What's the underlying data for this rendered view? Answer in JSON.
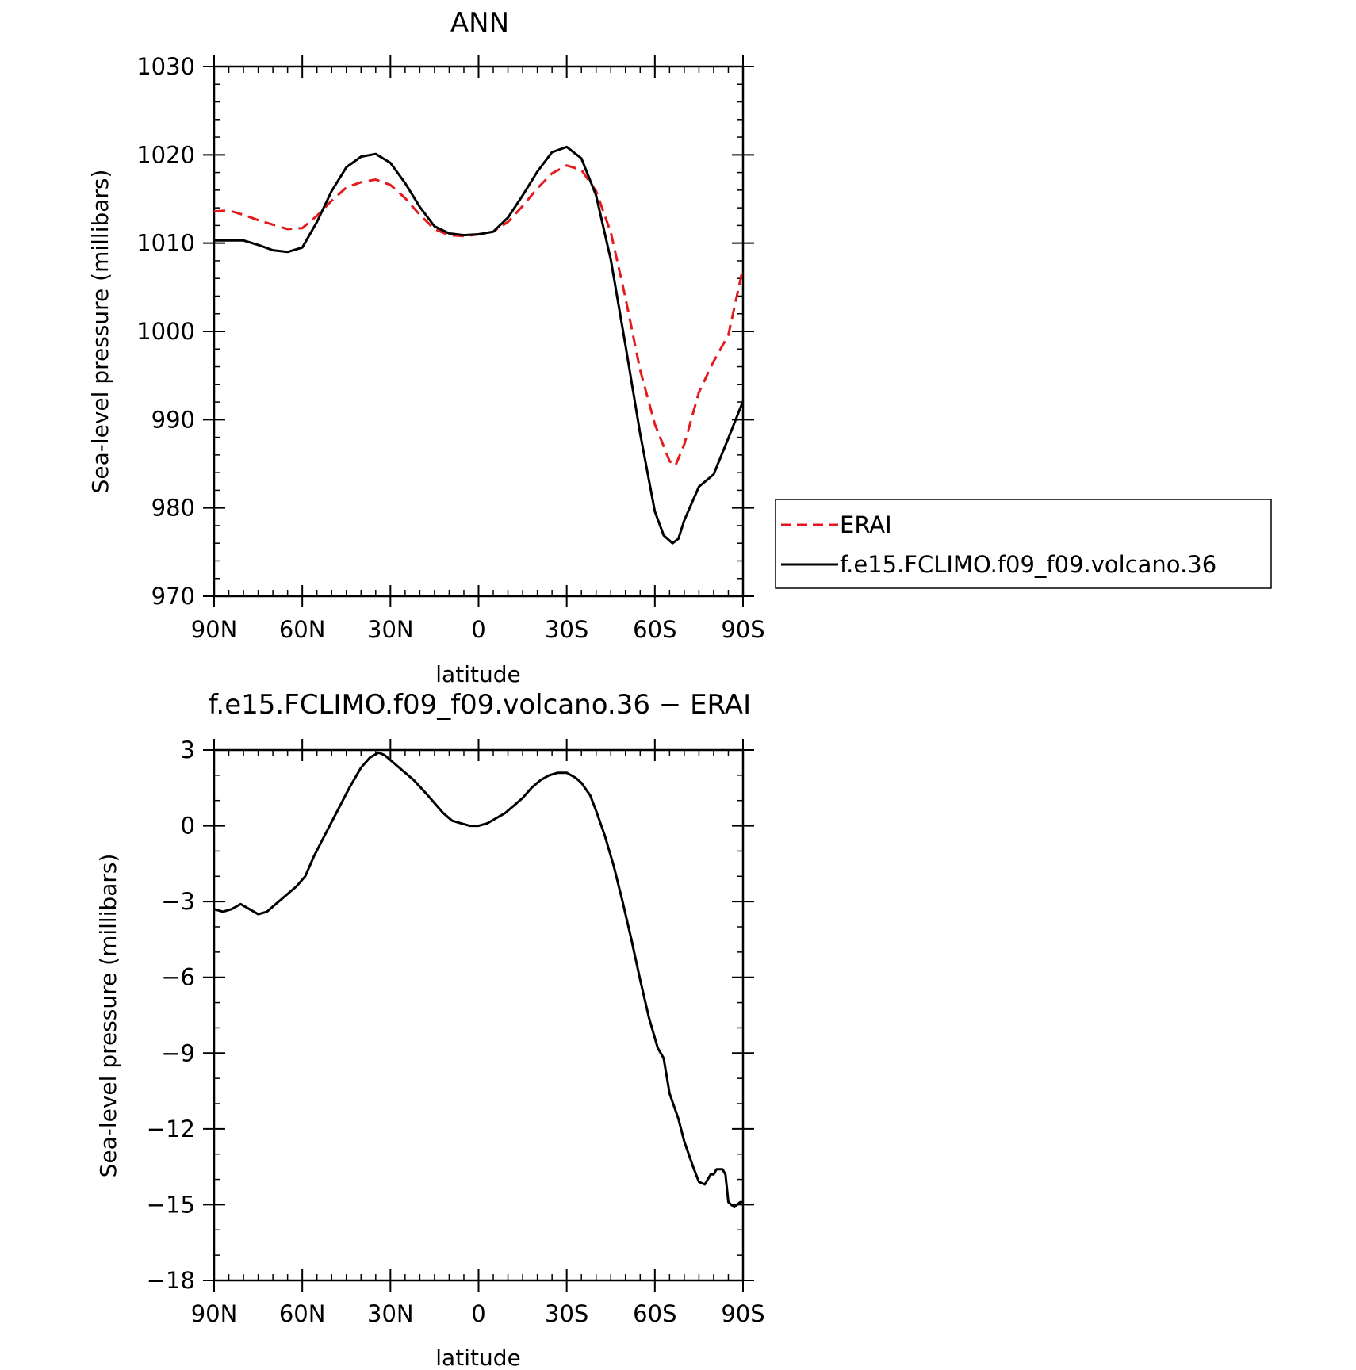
{
  "chart_data": [
    {
      "type": "line",
      "title": "ANN",
      "xlabel": "latitude",
      "ylabel": "Sea-level pressure (millibars)",
      "xlim": [
        90,
        -90
      ],
      "ylim": [
        970,
        1030
      ],
      "x_ticks": [
        90,
        60,
        30,
        0,
        -30,
        -60,
        -90
      ],
      "x_tick_labels": [
        "90N",
        "60N",
        "30N",
        "0",
        "30S",
        "60S",
        "90S"
      ],
      "y_ticks": [
        970,
        980,
        990,
        1000,
        1010,
        1020,
        1030
      ],
      "y_tick_labels": [
        "970",
        "980",
        "990",
        "1000",
        "1010",
        "1020",
        "1030"
      ],
      "legend": {
        "placement": "right-outside"
      },
      "series": [
        {
          "name": "ERAI",
          "color": "#e41a1c",
          "dash": "dashed",
          "x": [
            90,
            85,
            80,
            75,
            70,
            65,
            60,
            55,
            50,
            45,
            40,
            35,
            30,
            25,
            20,
            15,
            10,
            5,
            0,
            -5,
            -10,
            -15,
            -20,
            -25,
            -30,
            -35,
            -40,
            -45,
            -50,
            -55,
            -60,
            -65,
            -67,
            -70,
            -75,
            -80,
            -85,
            -90
          ],
          "y": [
            1013.6,
            1013.7,
            1013.2,
            1012.6,
            1012.1,
            1011.6,
            1011.7,
            1013.1,
            1014.8,
            1016.3,
            1016.9,
            1017.2,
            1016.6,
            1015.1,
            1013.2,
            1011.6,
            1010.9,
            1010.8,
            1011.0,
            1011.3,
            1012.4,
            1014.2,
            1016.2,
            1017.9,
            1018.8,
            1018.3,
            1015.9,
            1011.2,
            1003.8,
            995.6,
            989.5,
            985.3,
            984.8,
            987.2,
            993.1,
            996.6,
            999.6,
            1007.2
          ]
        },
        {
          "name": "f.e15.FCLIMO.f09_f09.volcano.36",
          "color": "#000000",
          "dash": "solid",
          "x": [
            90,
            85,
            80,
            75,
            70,
            65,
            60,
            55,
            50,
            45,
            40,
            35,
            30,
            25,
            20,
            15,
            10,
            5,
            0,
            -5,
            -10,
            -15,
            -20,
            -25,
            -30,
            -35,
            -40,
            -45,
            -50,
            -55,
            -60,
            -63,
            -66,
            -68,
            -70,
            -75,
            -80,
            -85,
            -90
          ],
          "y": [
            1010.3,
            1010.3,
            1010.3,
            1009.8,
            1009.2,
            1009.0,
            1009.5,
            1012.4,
            1015.9,
            1018.6,
            1019.8,
            1020.1,
            1019.1,
            1016.8,
            1014.1,
            1011.9,
            1011.1,
            1010.9,
            1011.0,
            1011.3,
            1012.9,
            1015.4,
            1018.1,
            1020.3,
            1020.9,
            1019.6,
            1015.4,
            1008.1,
            998.4,
            988.4,
            979.6,
            976.9,
            976.0,
            976.5,
            978.6,
            982.4,
            983.8,
            987.9,
            992.1
          ]
        }
      ]
    },
    {
      "type": "line",
      "title": "f.e15.FCLIMO.f09_f09.volcano.36 − ERAI",
      "xlabel": "latitude",
      "ylabel": "Sea-level pressure (millibars)",
      "xlim": [
        90,
        -90
      ],
      "ylim": [
        -18,
        3
      ],
      "x_ticks": [
        90,
        60,
        30,
        0,
        -30,
        -60,
        -90
      ],
      "x_tick_labels": [
        "90N",
        "60N",
        "30N",
        "0",
        "30S",
        "60S",
        "90S"
      ],
      "y_ticks": [
        -18,
        -15,
        -12,
        -9,
        -6,
        -3,
        0,
        3
      ],
      "y_tick_labels": [
        "−18",
        "−15",
        "−12",
        "−9",
        "−6",
        "−3",
        "0",
        "3"
      ],
      "series": [
        {
          "color": "#000000",
          "dash": "solid",
          "x": [
            90,
            87,
            84,
            81,
            78,
            75,
            72,
            69,
            65,
            62,
            59,
            56,
            52,
            48,
            44,
            40,
            37,
            34,
            32,
            29,
            26,
            22,
            18,
            15,
            12,
            9,
            6,
            3,
            0,
            -3,
            -6,
            -9,
            -12,
            -15,
            -18,
            -21,
            -24,
            -27,
            -30,
            -33,
            -35,
            -38,
            -40,
            -43,
            -46,
            -49,
            -52,
            -55,
            -58,
            -61,
            -63,
            -65,
            -68,
            -70,
            -73,
            -75,
            -77,
            -79,
            -80,
            -81,
            -83,
            -84,
            -85,
            -87,
            -88,
            -89,
            -90
          ],
          "y": [
            -3.3,
            -3.4,
            -3.3,
            -3.1,
            -3.3,
            -3.5,
            -3.4,
            -3.1,
            -2.7,
            -2.4,
            -2.0,
            -1.2,
            -0.3,
            0.6,
            1.5,
            2.3,
            2.7,
            2.9,
            2.8,
            2.5,
            2.2,
            1.8,
            1.3,
            0.9,
            0.5,
            0.2,
            0.1,
            0.0,
            0.0,
            0.1,
            0.3,
            0.5,
            0.8,
            1.1,
            1.5,
            1.8,
            2.0,
            2.1,
            2.1,
            1.9,
            1.7,
            1.2,
            0.6,
            -0.4,
            -1.6,
            -3.0,
            -4.5,
            -6.1,
            -7.6,
            -8.8,
            -9.2,
            -10.6,
            -11.6,
            -12.5,
            -13.5,
            -14.1,
            -14.2,
            -13.8,
            -13.8,
            -13.6,
            -13.6,
            -13.8,
            -14.9,
            -15.1,
            -15.0,
            -14.9,
            -14.9
          ]
        }
      ]
    }
  ]
}
